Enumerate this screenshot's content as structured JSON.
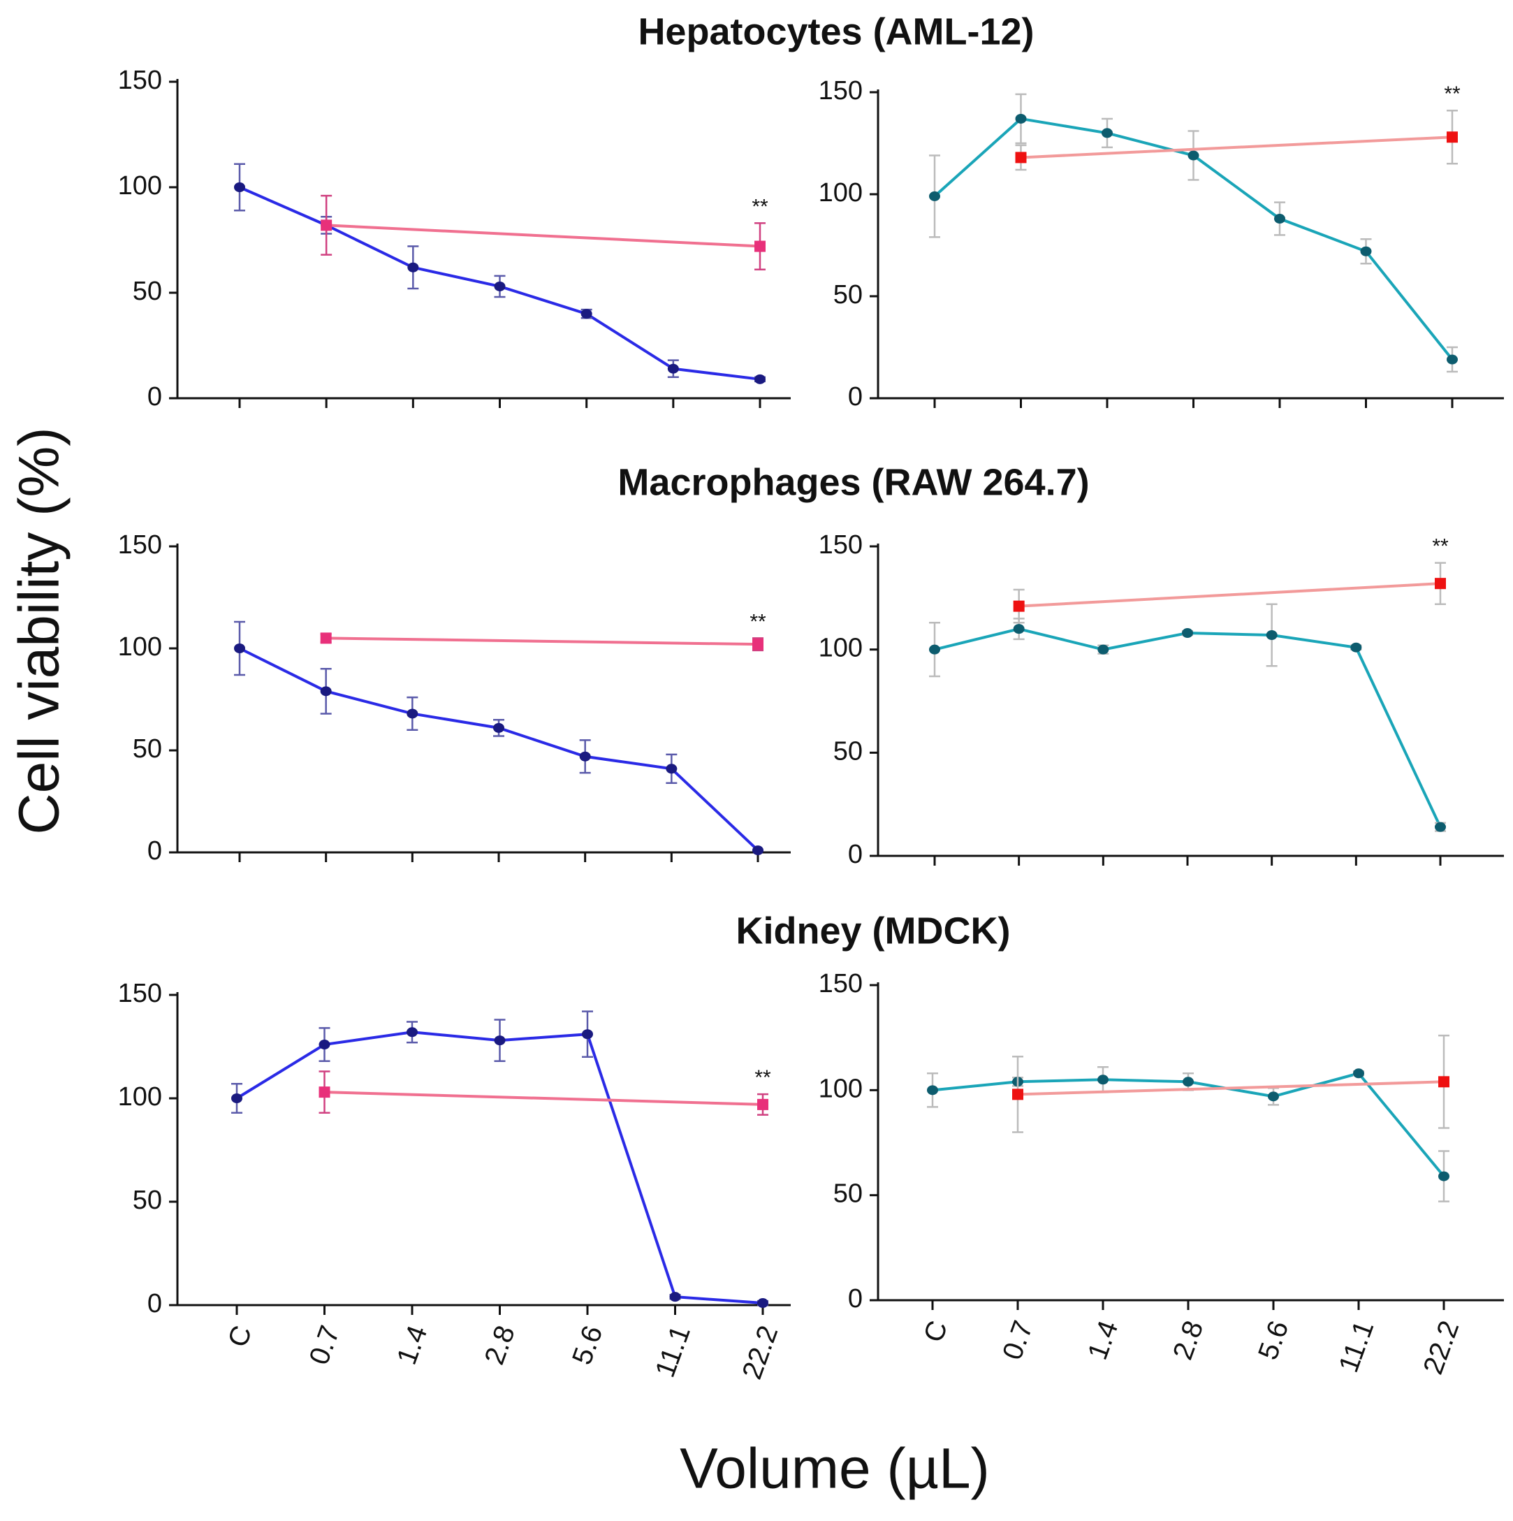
{
  "row_titles": [
    "Hepatocytes (AML-12)",
    "Macrophages (RAW 264.7)",
    "Kidney (MDCK)"
  ],
  "ylabel": "Cell viability (%)",
  "xlabel": "Volume (µL)",
  "chart_data": [
    {
      "type": "line",
      "categories": [
        null,
        null,
        null,
        null,
        null,
        null,
        null
      ],
      "ylim": [
        0,
        150
      ],
      "yticks": [
        0,
        50,
        100,
        150
      ],
      "annotation": "**",
      "series": [
        {
          "color": "#2a2ae6",
          "marker_color": "#1a1a80",
          "error_color": "#5a5aaa",
          "marker": "circle",
          "values": [
            100,
            82,
            62,
            53,
            40,
            14,
            9
          ],
          "errors": [
            11,
            4,
            10,
            5,
            2,
            4,
            1
          ]
        },
        {
          "color": "#f07090",
          "marker_color": "#e8307a",
          "error_color": "#d04080",
          "marker": "square",
          "values": [
            null,
            82,
            null,
            null,
            null,
            null,
            72
          ],
          "errors": [
            null,
            14,
            null,
            null,
            null,
            null,
            11
          ]
        }
      ]
    },
    {
      "type": "line",
      "categories": [
        null,
        null,
        null,
        null,
        null,
        null,
        null
      ],
      "ylim": [
        0,
        150
      ],
      "yticks": [
        0,
        50,
        100,
        150
      ],
      "annotation": "**",
      "series": [
        {
          "color": "#1aa5b8",
          "marker_color": "#0d5c6e",
          "error_color": "#bbbbbb",
          "marker": "circle",
          "values": [
            99,
            137,
            130,
            119,
            88,
            72,
            19
          ],
          "errors": [
            20,
            12,
            7,
            12,
            8,
            6,
            6
          ]
        },
        {
          "color": "#f29a9a",
          "marker_color": "#ee1111",
          "error_color": "#bbbbbb",
          "marker": "square",
          "values": [
            null,
            118,
            null,
            null,
            null,
            null,
            128
          ],
          "errors": [
            null,
            6,
            null,
            null,
            null,
            null,
            13
          ]
        }
      ]
    },
    {
      "type": "line",
      "categories": [
        null,
        null,
        null,
        null,
        null,
        null,
        null
      ],
      "ylim": [
        0,
        150
      ],
      "yticks": [
        0,
        50,
        100,
        150
      ],
      "annotation": "**",
      "series": [
        {
          "color": "#2a2ae6",
          "marker_color": "#1a1a80",
          "error_color": "#5a5aaa",
          "marker": "circle",
          "values": [
            100,
            79,
            68,
            61,
            47,
            41,
            1
          ],
          "errors": [
            13,
            11,
            8,
            4,
            8,
            7,
            0
          ]
        },
        {
          "color": "#f07090",
          "marker_color": "#e8307a",
          "error_color": "#d04080",
          "marker": "square",
          "values": [
            null,
            105,
            null,
            null,
            null,
            null,
            102
          ],
          "errors": [
            null,
            2,
            null,
            null,
            null,
            null,
            3
          ]
        }
      ]
    },
    {
      "type": "line",
      "categories": [
        null,
        null,
        null,
        null,
        null,
        null,
        null
      ],
      "ylim": [
        0,
        150
      ],
      "yticks": [
        0,
        50,
        100,
        150
      ],
      "annotation": "**",
      "series": [
        {
          "color": "#1aa5b8",
          "marker_color": "#0d5c6e",
          "error_color": "#bbbbbb",
          "marker": "circle",
          "values": [
            100,
            110,
            100,
            108,
            107,
            101,
            14
          ],
          "errors": [
            13,
            5,
            2,
            1,
            15,
            1,
            2
          ]
        },
        {
          "color": "#f29a9a",
          "marker_color": "#ee1111",
          "error_color": "#bbbbbb",
          "marker": "square",
          "values": [
            null,
            121,
            null,
            null,
            null,
            null,
            132
          ],
          "errors": [
            null,
            8,
            null,
            null,
            null,
            null,
            10
          ]
        }
      ]
    },
    {
      "type": "line",
      "categories": [
        "C",
        "0.7",
        "1.4",
        "2.8",
        "5.6",
        "11.1",
        "22.2"
      ],
      "ylim": [
        0,
        150
      ],
      "yticks": [
        0,
        50,
        100,
        150
      ],
      "annotation": "**",
      "series": [
        {
          "color": "#2a2ae6",
          "marker_color": "#1a1a80",
          "error_color": "#5a5aaa",
          "marker": "circle",
          "values": [
            100,
            126,
            132,
            128,
            131,
            4,
            1
          ],
          "errors": [
            7,
            8,
            5,
            10,
            11,
            1,
            1
          ]
        },
        {
          "color": "#f07090",
          "marker_color": "#e8307a",
          "error_color": "#d04080",
          "marker": "square",
          "values": [
            null,
            103,
            null,
            null,
            null,
            null,
            97
          ],
          "errors": [
            null,
            10,
            null,
            null,
            null,
            null,
            5
          ]
        }
      ]
    },
    {
      "type": "line",
      "categories": [
        "C",
        "0.7",
        "1.4",
        "2.8",
        "5.6",
        "11.1",
        "22.2"
      ],
      "ylim": [
        0,
        150
      ],
      "yticks": [
        0,
        50,
        100,
        150
      ],
      "series": [
        {
          "color": "#1aa5b8",
          "marker_color": "#0d5c6e",
          "error_color": "#bbbbbb",
          "marker": "circle",
          "values": [
            100,
            104,
            105,
            104,
            97,
            108,
            59
          ],
          "errors": [
            8,
            2,
            6,
            4,
            4,
            1,
            12
          ]
        },
        {
          "color": "#f29a9a",
          "marker_color": "#ee1111",
          "error_color": "#bbbbbb",
          "marker": "square",
          "values": [
            null,
            98,
            null,
            null,
            null,
            null,
            104
          ],
          "errors": [
            null,
            18,
            null,
            null,
            null,
            null,
            22
          ]
        }
      ]
    }
  ]
}
